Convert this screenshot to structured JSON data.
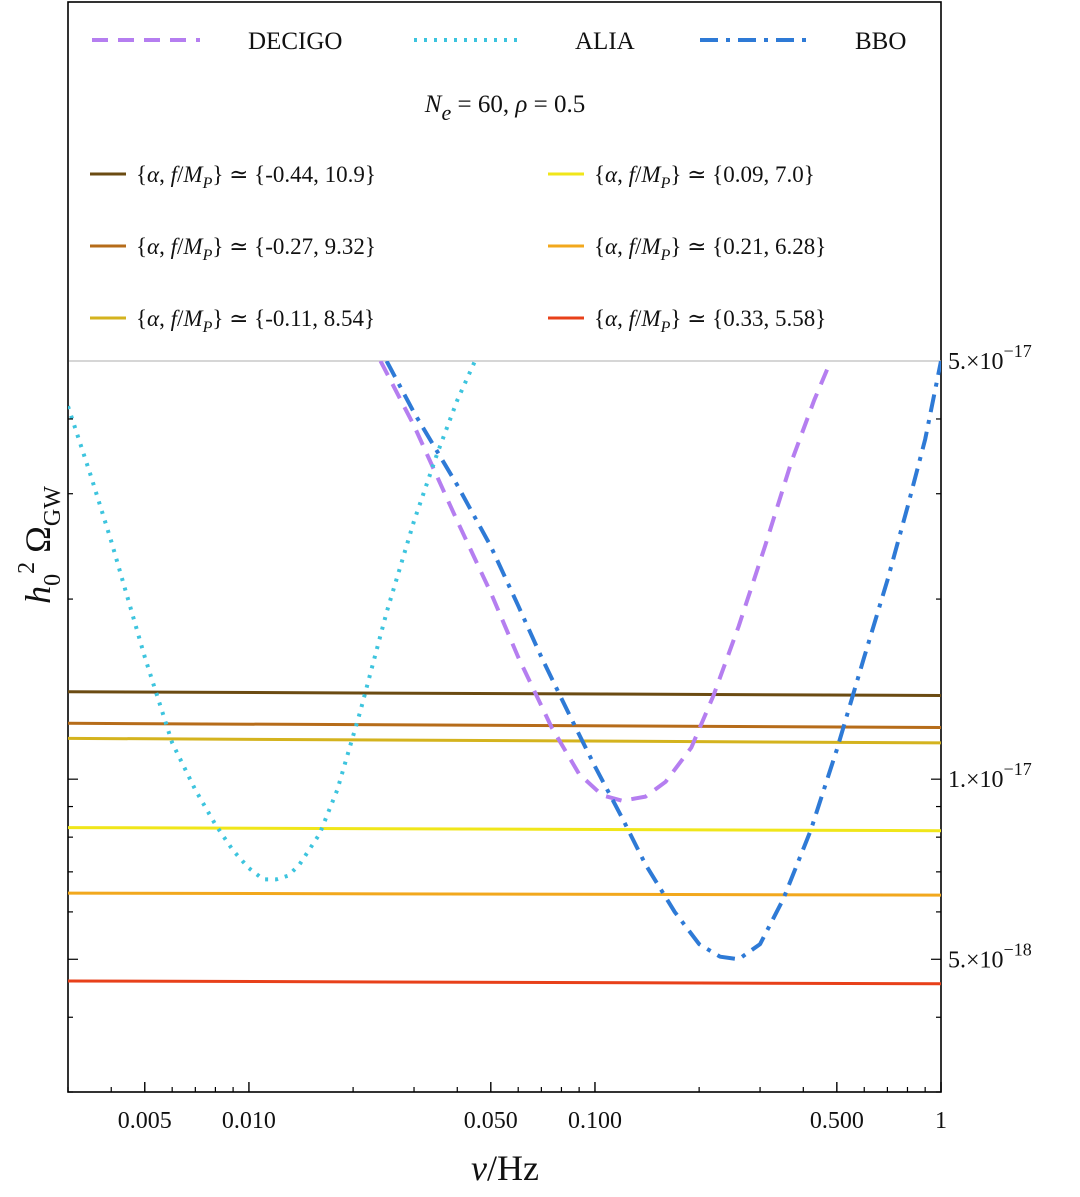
{
  "chart_data": {
    "type": "line",
    "title": "",
    "xlabel": "ν/Hz",
    "ylabel": "h0^2 Ω_GW",
    "xscale": "log",
    "yscale": "log",
    "xlim": [
      0.003,
      1.0
    ],
    "ylim": [
      3e-18,
      5e-17
    ],
    "x_ticks": [
      {
        "value": 0.005,
        "label": "0.005"
      },
      {
        "value": 0.01,
        "label": "0.010"
      },
      {
        "value": 0.05,
        "label": "0.050"
      },
      {
        "value": 0.1,
        "label": "0.100"
      },
      {
        "value": 0.5,
        "label": "0.500"
      },
      {
        "value": 1.0,
        "label": "1"
      }
    ],
    "y_ticks": [
      {
        "value": 5e-17,
        "mantissa": "5.×10",
        "exponent": "−17"
      },
      {
        "value": 1e-17,
        "mantissa": "1.×10",
        "exponent": "−17"
      },
      {
        "value": 5e-18,
        "mantissa": "5.×10",
        "exponent": "−18"
      }
    ],
    "legend_position": "top",
    "legend_caption": {
      "n_label": "N",
      "n_sub": "e",
      "n_value": "= 60,",
      "rho_label": "ρ",
      "rho_value": "= 0.5"
    },
    "detectors": [
      {
        "name": "DECIGO",
        "color": "#b57ef0",
        "dash": "16,10",
        "x": [
          0.024,
          0.03,
          0.04,
          0.05,
          0.06,
          0.075,
          0.09,
          0.105,
          0.12,
          0.14,
          0.16,
          0.19,
          0.22,
          0.26,
          0.31,
          0.37,
          0.43,
          0.48
        ],
        "y": [
          5e-17,
          3.9e-17,
          2.7e-17,
          2.05e-17,
          1.6e-17,
          1.22e-17,
          1.02e-17,
          9.4e-18,
          9.2e-18,
          9.35e-18,
          9.9e-18,
          1.13e-17,
          1.38e-17,
          1.8e-17,
          2.45e-17,
          3.4e-17,
          4.3e-17,
          5e-17
        ]
      },
      {
        "name": "ALIA",
        "color": "#3dc4de",
        "dash": "3,7",
        "x": [
          0.003,
          0.0035,
          0.004,
          0.005,
          0.006,
          0.007,
          0.008,
          0.009,
          0.01,
          0.011,
          0.012,
          0.013,
          0.014,
          0.016,
          0.018,
          0.021,
          0.025,
          0.03,
          0.035,
          0.04,
          0.045
        ],
        "y": [
          4.2e-17,
          3.2e-17,
          2.5e-17,
          1.6e-17,
          1.15e-17,
          9.6e-18,
          8.4e-18,
          7.6e-18,
          7.1e-18,
          6.8e-18,
          6.8e-18,
          6.9e-18,
          7.2e-18,
          8.1e-18,
          9.6e-18,
          1.3e-17,
          1.9e-17,
          2.7e-17,
          3.5e-17,
          4.3e-17,
          5e-17
        ]
      },
      {
        "name": "BBO",
        "color": "#2e7ad6",
        "dash": "18,8,4,8",
        "x": [
          0.025,
          0.03,
          0.04,
          0.05,
          0.06,
          0.07,
          0.085,
          0.1,
          0.12,
          0.14,
          0.17,
          0.2,
          0.23,
          0.26,
          0.3,
          0.35,
          0.42,
          0.5,
          0.6,
          0.7,
          0.8,
          0.9,
          1.0
        ],
        "y": [
          5e-17,
          4.1e-17,
          3.1e-17,
          2.45e-17,
          1.95e-17,
          1.6e-17,
          1.27e-17,
          1.05e-17,
          8.6e-18,
          7.2e-18,
          6e-18,
          5.3e-18,
          5.05e-18,
          5e-18,
          5.3e-18,
          6.3e-18,
          8.2e-18,
          1.12e-17,
          1.6e-17,
          2.15e-17,
          2.85e-17,
          3.7e-17,
          5e-17
        ]
      }
    ],
    "series": [
      {
        "alpha": "-0.44",
        "f": "10.9",
        "color": "#6b4b12",
        "y_start": 1.4e-17,
        "y_end": 1.38e-17
      },
      {
        "alpha": "-0.27",
        "f": "9.32",
        "color": "#b66c1a",
        "y_start": 1.24e-17,
        "y_end": 1.22e-17
      },
      {
        "alpha": "-0.11",
        "f": "8.54",
        "color": "#d4b31e",
        "y_start": 1.17e-17,
        "y_end": 1.15e-17
      },
      {
        "alpha": "0.09",
        "f": "7.0",
        "color": "#f0e61a",
        "y_start": 8.3e-18,
        "y_end": 8.2e-18
      },
      {
        "alpha": "0.21",
        "f": "6.28",
        "color": "#f2a81d",
        "y_start": 6.45e-18,
        "y_end": 6.4e-18
      },
      {
        "alpha": "0.33",
        "f": "5.58",
        "color": "#e8401a",
        "y_start": 4.6e-18,
        "y_end": 4.55e-18
      }
    ],
    "series_legend_prefix": "{α, f/M",
    "series_legend_sub": "P",
    "series_legend_mid": "} ≃ {"
  }
}
